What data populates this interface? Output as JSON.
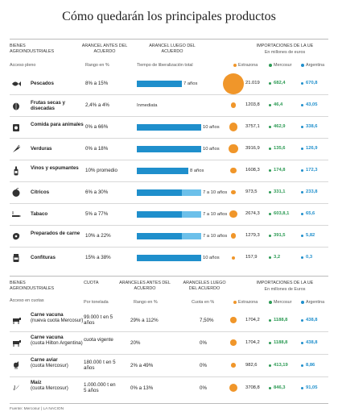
{
  "title": "Cómo quedarán los principales productos",
  "table1": {
    "headers": {
      "bienes": "Bienes agroindustriales",
      "arancel_antes": "Arancel antes del acuerdo",
      "arancel_luego": "Arancel luego del acuerdo",
      "importaciones": "Importaciones de la UE",
      "importaciones_sub": "En millones de euros"
    },
    "subheaders": {
      "acceso": "Acceso pleno",
      "rango": "Rango en %",
      "tiempo": "Tiempo de liberalización total"
    },
    "legend": {
      "extrazona": "Extrazona",
      "mercosur": "Mercosur",
      "argentina": "Argentina"
    },
    "rows": [
      {
        "icon": "fish-icon",
        "name": "Pescados",
        "rango": "8% a 15%",
        "bar_fraction": 0.7,
        "bar_light_fraction": 0,
        "tiempo": "7 años",
        "extrazona": "21.019",
        "mercosur": "682,4",
        "argentina": "670,8"
      },
      {
        "icon": "nuts-icon",
        "name": "Frutas secas y disecadas",
        "rango": "2,4% a 4%",
        "bar_fraction": 0,
        "bar_light_fraction": 0,
        "tiempo": "Inmediata",
        "extrazona": "1203,8",
        "mercosur": "46,4",
        "argentina": "43,05"
      },
      {
        "icon": "petfood-icon",
        "name": "Comida para animales",
        "rango": "0% a 66%",
        "bar_fraction": 1.0,
        "bar_light_fraction": 0,
        "tiempo": "10 años",
        "extrazona": "3757,1",
        "mercosur": "462,9",
        "argentina": "338,6"
      },
      {
        "icon": "carrot-icon",
        "name": "Verduras",
        "rango": "0% a 18%",
        "bar_fraction": 1.0,
        "bar_light_fraction": 0,
        "tiempo": "10 años",
        "extrazona": "3916,9",
        "mercosur": "135,6",
        "argentina": "126,9"
      },
      {
        "icon": "wine-bottle-icon",
        "name": "Vinos y espumantes",
        "rango": "10% promedio",
        "bar_fraction": 0.8,
        "bar_light_fraction": 0,
        "tiempo": "8 años",
        "extrazona": "1608,3",
        "mercosur": "174,8",
        "argentina": "172,3"
      },
      {
        "icon": "citrus-icon",
        "name": "Cítricos",
        "rango": "6% a 30%",
        "bar_fraction": 1.0,
        "bar_light_fraction": 0.3,
        "tiempo": "7 a 10 años",
        "extrazona": "973,5",
        "mercosur": "331,1",
        "argentina": "233,8"
      },
      {
        "icon": "tobacco-icon",
        "name": "Tabaco",
        "rango": "5% a 77%",
        "bar_fraction": 1.0,
        "bar_light_fraction": 0.3,
        "tiempo": "7 a 10 años",
        "extrazona": "2674,3",
        "mercosur": "603,8,1",
        "argentina": "65,6"
      },
      {
        "icon": "meat-prep-icon",
        "name": "Preparados de carne",
        "rango": "10% a 22%",
        "bar_fraction": 1.0,
        "bar_light_fraction": 0.3,
        "tiempo": "7 a 10 años",
        "extrazona": "1279,3",
        "mercosur": "391,5",
        "argentina": "5,82"
      },
      {
        "icon": "jar-icon",
        "name": "Confituras",
        "rango": "15% a 38%",
        "bar_fraction": 1.0,
        "bar_light_fraction": 0,
        "tiempo": "10 años",
        "extrazona": "157,9",
        "mercosur": "3,2",
        "argentina": "0,3"
      }
    ]
  },
  "table2": {
    "headers": {
      "bienes": "Bienes agroindustriales",
      "cuota": "Cuota",
      "aranceles_antes": "Aranceles antes del acuerdo",
      "aranceles_luego": "Aranceles luego del acuerdo",
      "importaciones": "Importaciones de la UE",
      "importaciones_sub": "En millones de Euros"
    },
    "subheaders": {
      "acceso": "Acceso en cuotas",
      "tonelada": "Por tonelada",
      "rango": "Rango en %",
      "cuota": "Cuota en %"
    },
    "legend": {
      "extrazona": "Extrazona",
      "mercosur": "Mercosur",
      "argentina": "Argentina"
    },
    "rows": [
      {
        "icon": "cow-icon",
        "name": "Carne vacuna",
        "detail": "(nueva cuota Mercosur)",
        "cuota": "99.000 t en 5 años",
        "antes": "29% a 112%",
        "luego": "7,50%",
        "extrazona": "1704,2",
        "mercosur": "1188,8",
        "argentina": "438,8"
      },
      {
        "icon": "cow-icon",
        "name": "Carne vacuna",
        "detail": "(cuota Hilton Argentina)",
        "cuota": "cuota vigente",
        "antes": "20%",
        "luego": "0%",
        "extrazona": "1704,2",
        "mercosur": "1188,8",
        "argentina": "438,8"
      },
      {
        "icon": "chicken-icon",
        "name": "Carne aviar",
        "detail": "(cuota Mercosur)",
        "cuota": "180.000 t en 5 años",
        "antes": "2% a 49%",
        "luego": "0%",
        "extrazona": "982,6",
        "mercosur": "413,19",
        "argentina": "8,86"
      },
      {
        "icon": "corn-icon",
        "name": "Maíz",
        "detail": "(cuota Mercosur)",
        "cuota": "1.000.000 t en 5 años",
        "antes": "0% a 13%",
        "luego": "0%",
        "extrazona": "3708,8",
        "mercosur": "846,3",
        "argentina": "91,05"
      }
    ]
  },
  "footer": "Fuente: Mercosur | LA NACION",
  "colors": {
    "bar": "#1f8fcc",
    "bar_light": "#6cc0ea",
    "extrazona": "#f0962a",
    "mercosur": "#2c9a54",
    "argentina": "#1f8fcc"
  }
}
